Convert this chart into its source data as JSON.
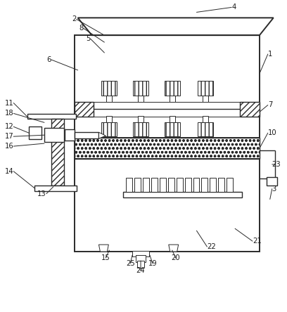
{
  "fig_width": 4.08,
  "fig_height": 4.44,
  "dpi": 100,
  "bg_color": "#ffffff",
  "line_color": "#2a2a2a",
  "label_fontsize": 7.2,
  "label_color": "#1a1a1a"
}
